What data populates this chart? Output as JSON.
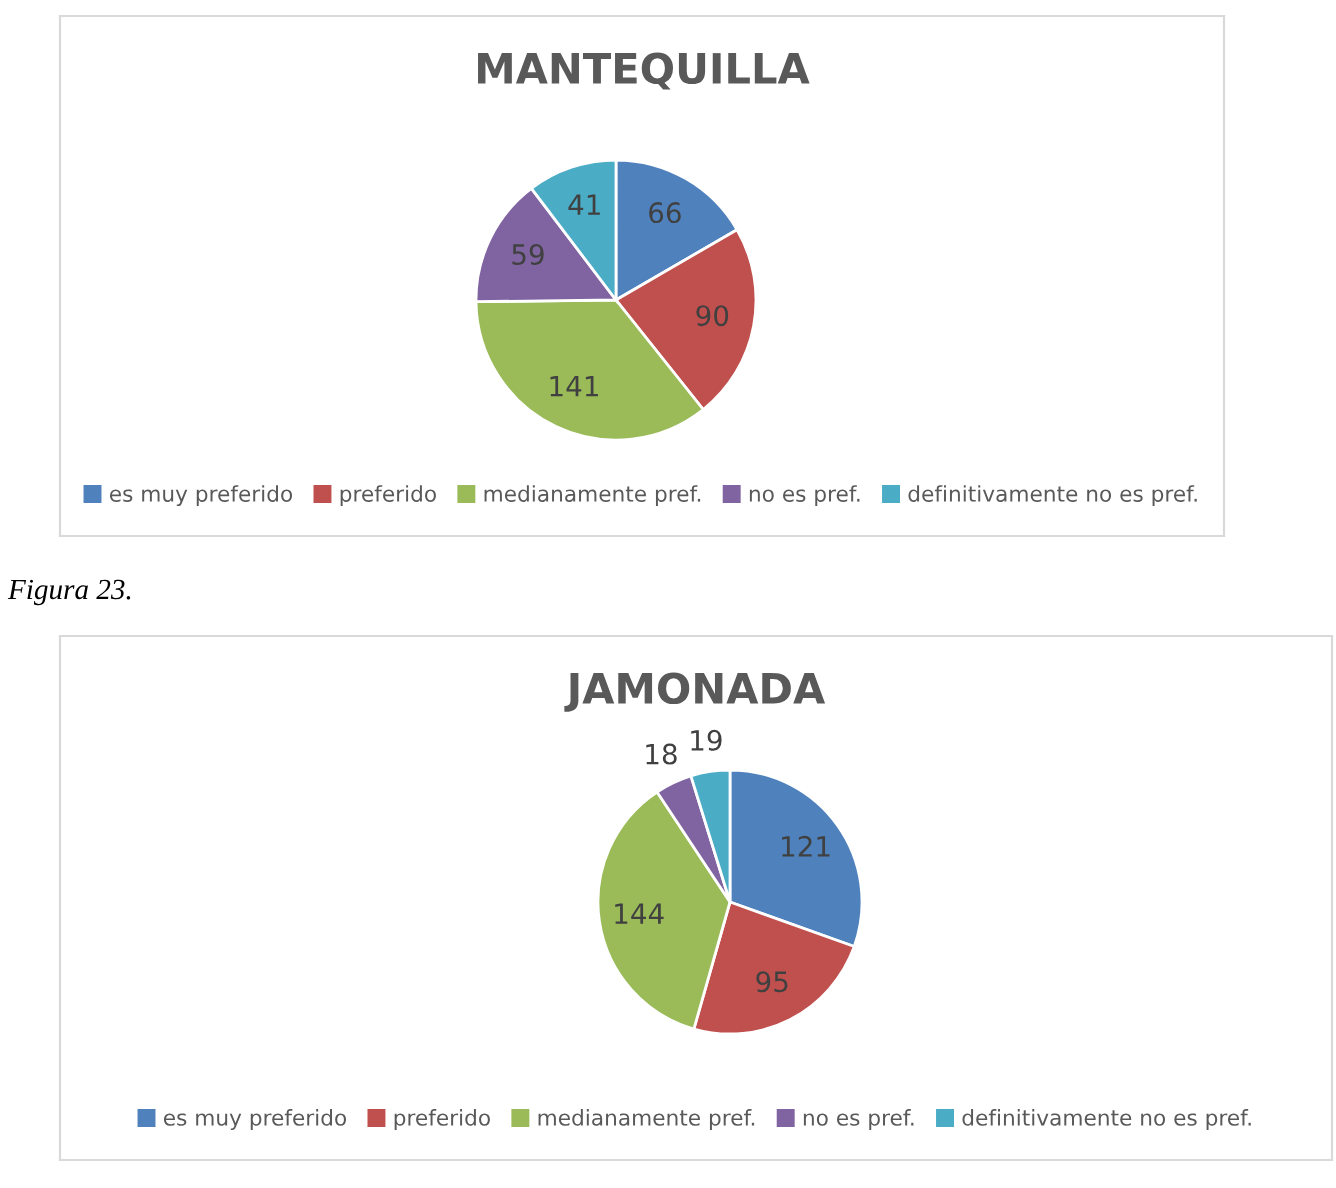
{
  "chart_data": [
    {
      "type": "pie",
      "title": "MANTEQUILLA",
      "categories": [
        "es muy preferido",
        "preferido",
        "medianamente pref.",
        "no es pref.",
        "definitivamente no es pref."
      ],
      "values": [
        66,
        90,
        141,
        59,
        41
      ],
      "colors": [
        "#4f81bd",
        "#c0504d",
        "#9bbb59",
        "#8064a2",
        "#4bacc6"
      ],
      "data_labels": true,
      "legend": "bottom"
    },
    {
      "type": "pie",
      "title": "JAMONADA",
      "categories": [
        "es muy preferido",
        "preferido",
        "medianamente pref.",
        "no es pref.",
        "definitivamente no es pref."
      ],
      "values": [
        121,
        95,
        144,
        18,
        19
      ],
      "colors": [
        "#4f81bd",
        "#c0504d",
        "#9bbb59",
        "#8064a2",
        "#4bacc6"
      ],
      "data_labels": true,
      "legend": "bottom",
      "annotations": [
        "Figura 23."
      ]
    }
  ]
}
